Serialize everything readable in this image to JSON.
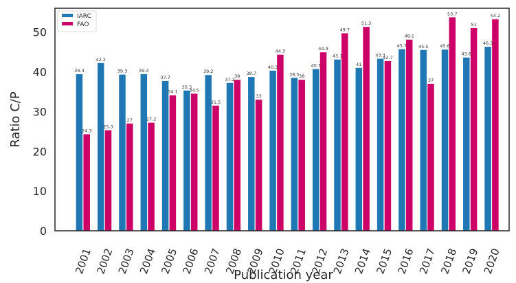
{
  "chart_data": {
    "type": "bar",
    "xlabel": "Publication year",
    "ylabel": "Ratio C/P",
    "ylim": [
      0,
      56
    ],
    "yticks": [
      0,
      10,
      20,
      30,
      40,
      50
    ],
    "grid": false,
    "legend_position": "top-left",
    "categories": [
      "2001",
      "2002",
      "2003",
      "2004",
      "2005",
      "2006",
      "2007",
      "2008",
      "2009",
      "2010",
      "2011",
      "2012",
      "2013",
      "2014",
      "2015",
      "2016",
      "2017",
      "2018",
      "2019",
      "2020"
    ],
    "series": [
      {
        "name": "IARC",
        "color": "#1f77b4",
        "values": [
          39.4,
          42.2,
          39.3,
          39.4,
          37.7,
          35.3,
          39.2,
          37.2,
          38.7,
          40.3,
          38.5,
          40.7,
          43.1,
          41,
          43.3,
          45.7,
          45.5,
          45.6,
          43.6,
          46.3
        ],
        "labels": [
          "39.4",
          "42.2",
          "39.3",
          "39.4",
          "37.7",
          "35.3",
          "39.2",
          "37.2",
          "38.7",
          "40.3",
          "38.5",
          "40.7",
          "43.1",
          "41",
          "43.3",
          "45.7",
          "45.5",
          "45.6",
          "43.6",
          "46.3"
        ]
      },
      {
        "name": "FAO",
        "color": "#cc0066",
        "values": [
          24.3,
          25.3,
          27,
          27.2,
          34.1,
          34.5,
          31.5,
          38,
          33,
          44.3,
          38,
          44.9,
          49.7,
          51.3,
          42.7,
          48.1,
          37,
          53.7,
          51,
          53.2
        ],
        "labels": [
          "24.3",
          "25.3",
          "27",
          "27.2",
          "34.1",
          "34.5",
          "31.5",
          "38",
          "33",
          "44.3",
          "38",
          "44.9",
          "49.7",
          "51.3",
          "42.7",
          "48.1",
          "37",
          "53.7",
          "51",
          "53.2"
        ]
      }
    ]
  }
}
